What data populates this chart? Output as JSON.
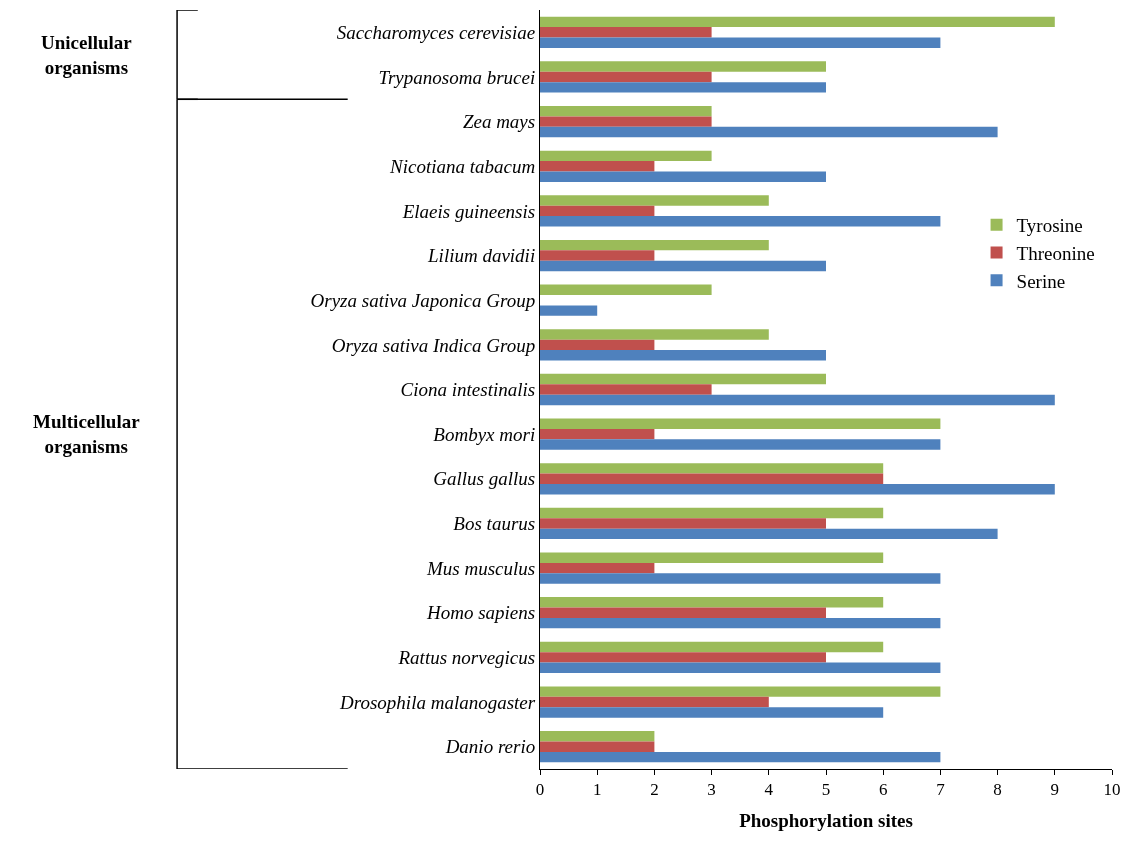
{
  "chart_data": {
    "type": "bar",
    "orientation": "horizontal",
    "xlabel": "Phosphorylation sites",
    "categories": [
      "Saccharomyces cerevisiae",
      "Trypanosoma brucei",
      "Zea mays",
      "Nicotiana tabacum",
      "Elaeis guineensis",
      "Lilium davidii",
      "Oryza sativa Japonica Group",
      "Oryza sativa Indica Group",
      "Ciona intestinalis",
      "Bombyx mori",
      "Gallus gallus",
      "Bos taurus",
      "Mus musculus",
      "Homo sapiens",
      "Rattus norvegicus",
      "Drosophila malanogaster",
      "Danio rerio"
    ],
    "series": [
      {
        "name": "Tyrosine",
        "color": "#9bbb59",
        "values": [
          9,
          5,
          3,
          3,
          4,
          4,
          3,
          4,
          5,
          7,
          6,
          6,
          6,
          6,
          6,
          7,
          2
        ]
      },
      {
        "name": "Threonine",
        "color": "#c0504d",
        "values": [
          3,
          3,
          3,
          2,
          2,
          2,
          0,
          2,
          3,
          2,
          6,
          5,
          2,
          5,
          5,
          4,
          2
        ]
      },
      {
        "name": "Serine",
        "color": "#4f81bd",
        "values": [
          7,
          5,
          8,
          5,
          7,
          5,
          1,
          5,
          9,
          7,
          9,
          8,
          7,
          7,
          7,
          6,
          7
        ]
      }
    ],
    "xlim": [
      0,
      10
    ],
    "xticks": [
      0,
      1,
      2,
      3,
      4,
      5,
      6,
      7,
      8,
      9,
      10
    ],
    "annotations": [
      "Unicellular organisms",
      "Multicellular organisms"
    ],
    "legend": "right"
  }
}
